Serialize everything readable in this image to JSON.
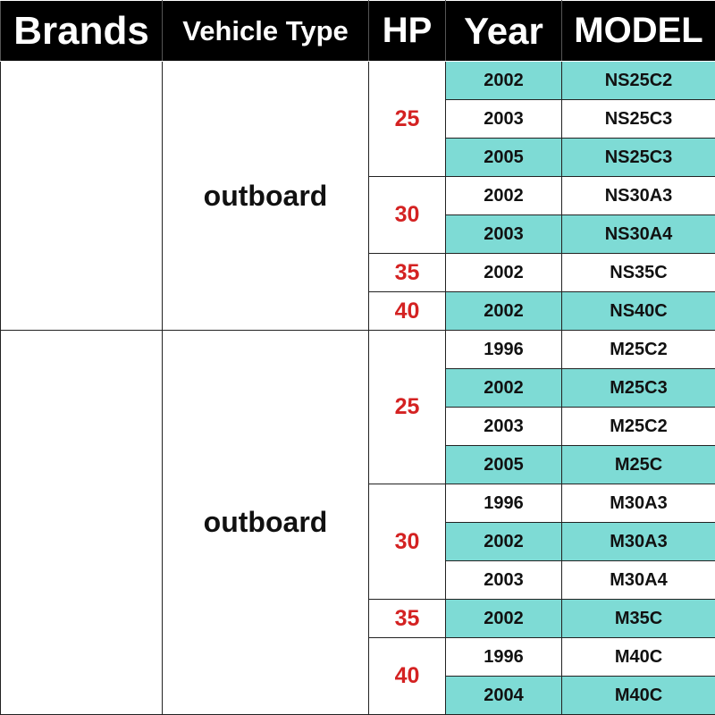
{
  "header": {
    "columns": [
      "Brands",
      "Vehicle Type",
      "HP",
      "Year",
      "MODEL"
    ]
  },
  "groups": [
    {
      "vehicle_type": "outboard",
      "hp_groups": [
        {
          "hp": "25",
          "rows": [
            {
              "year": "2002",
              "model": "NS25C2"
            },
            {
              "year": "2003",
              "model": "NS25C3"
            },
            {
              "year": "2005",
              "model": "NS25C3"
            }
          ]
        },
        {
          "hp": "30",
          "rows": [
            {
              "year": "2002",
              "model": "NS30A3"
            },
            {
              "year": "2003",
              "model": "NS30A4"
            }
          ]
        },
        {
          "hp": "35",
          "rows": [
            {
              "year": "2002",
              "model": "NS35C"
            }
          ]
        },
        {
          "hp": "40",
          "rows": [
            {
              "year": "2002",
              "model": "NS40C"
            }
          ]
        }
      ]
    },
    {
      "vehicle_type": "outboard",
      "hp_groups": [
        {
          "hp": "25",
          "rows": [
            {
              "year": "1996",
              "model": "M25C2"
            },
            {
              "year": "2002",
              "model": "M25C3"
            },
            {
              "year": "2003",
              "model": "M25C2"
            },
            {
              "year": "2005",
              "model": "M25C"
            }
          ]
        },
        {
          "hp": "30",
          "rows": [
            {
              "year": "1996",
              "model": "M30A3"
            },
            {
              "year": "2002",
              "model": "M30A3"
            },
            {
              "year": "2003",
              "model": "M30A4"
            }
          ]
        },
        {
          "hp": "35",
          "rows": [
            {
              "year": "2002",
              "model": "M35C"
            }
          ]
        },
        {
          "hp": "40",
          "rows": [
            {
              "year": "1996",
              "model": "M40C"
            },
            {
              "year": "2004",
              "model": "M40C"
            }
          ]
        }
      ]
    }
  ]
}
